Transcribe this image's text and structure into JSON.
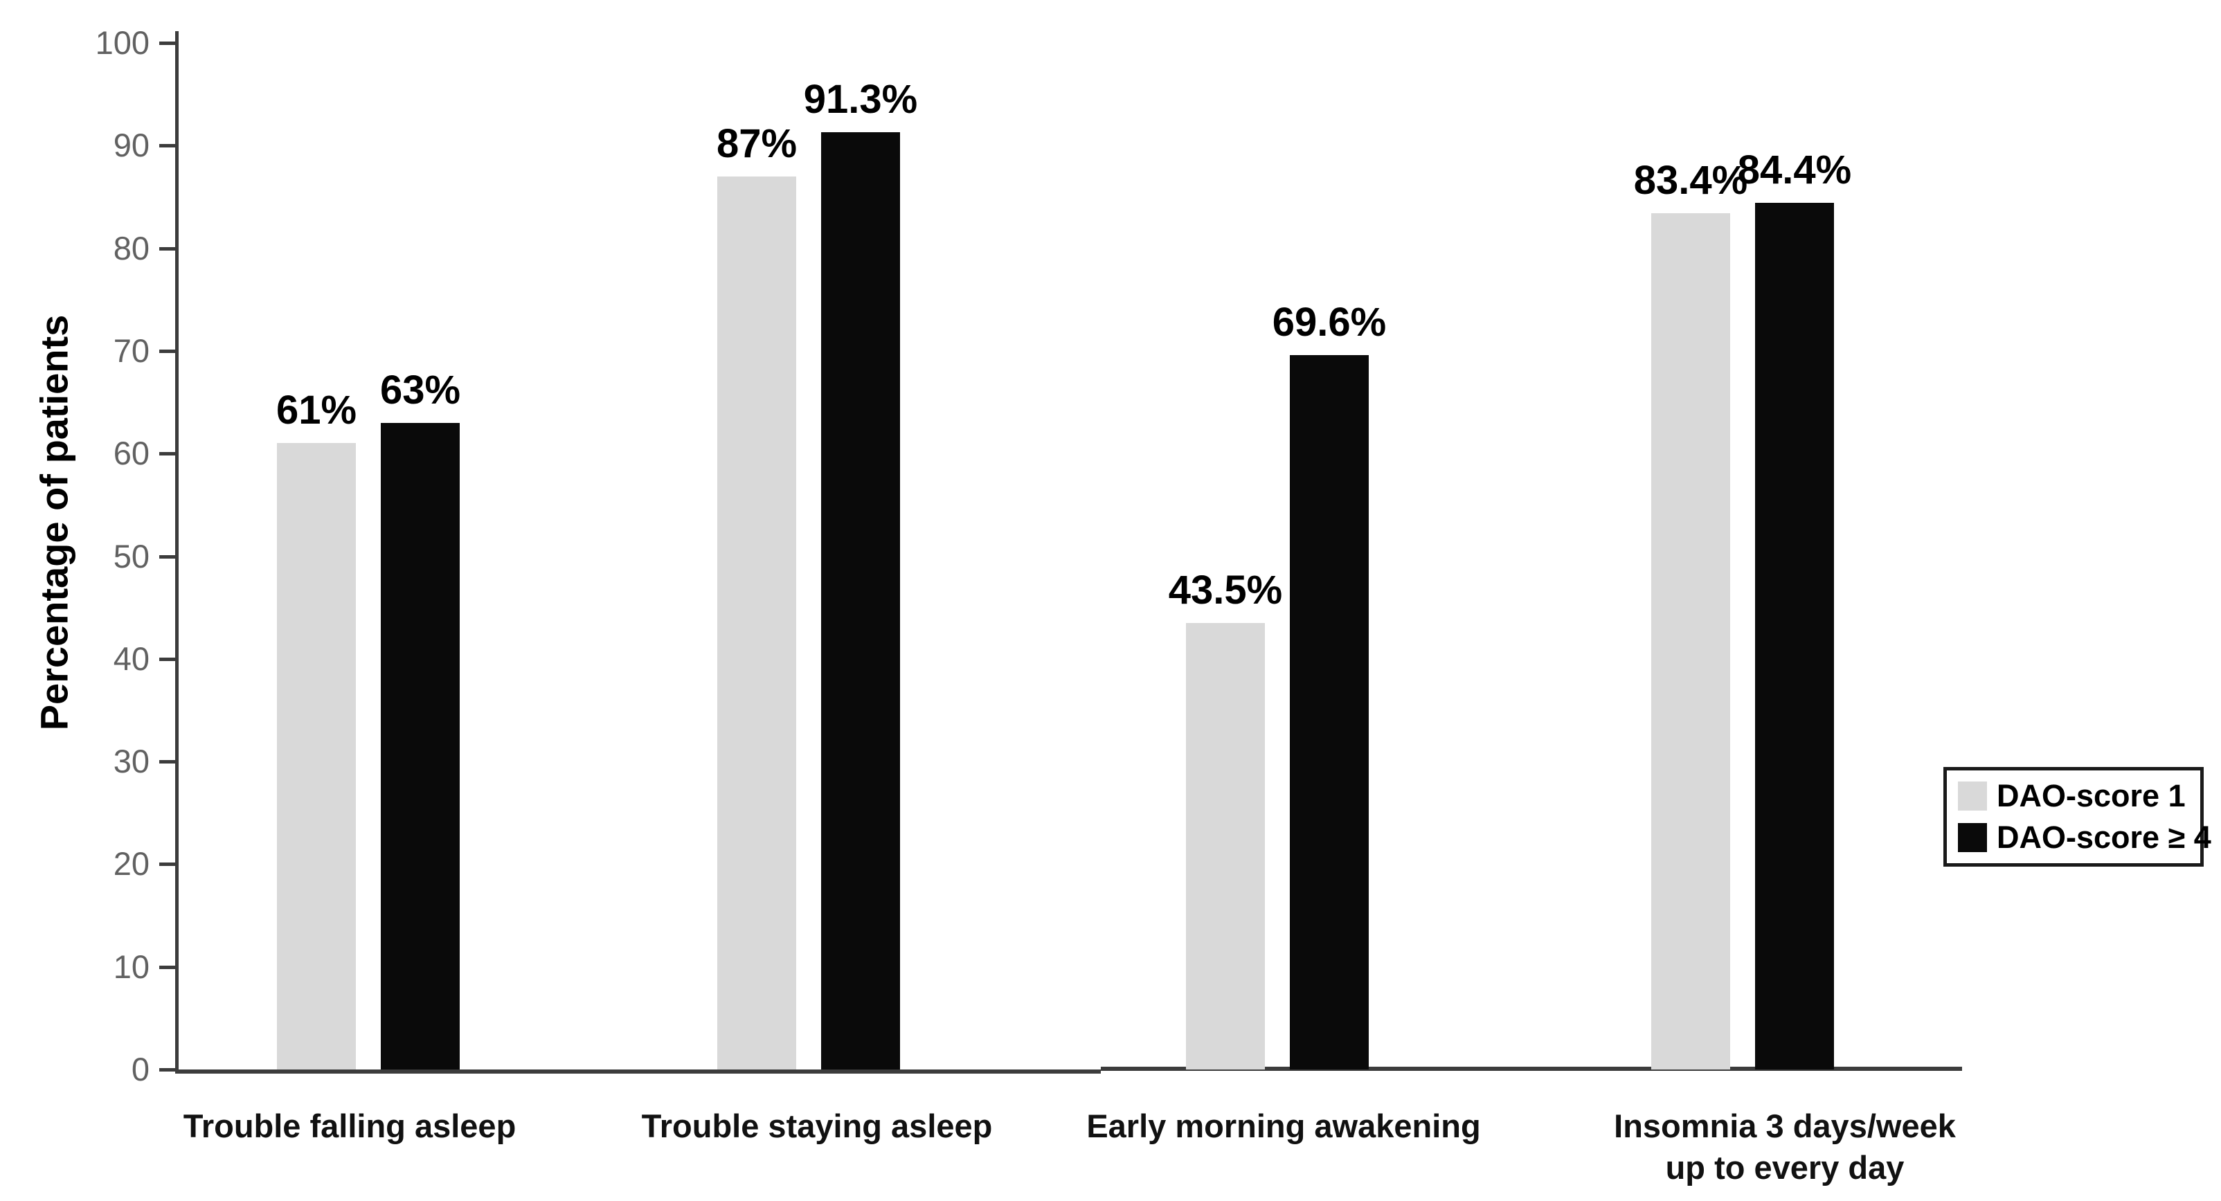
{
  "figure": {
    "background": "#ffffff"
  },
  "chart_data": {
    "type": "bar",
    "title": "",
    "xlabel": "",
    "ylabel": "Percentage of patients",
    "ylim": [
      0,
      100
    ],
    "yticks": [
      0,
      10,
      20,
      30,
      40,
      50,
      60,
      70,
      80,
      90,
      100
    ],
    "grid": false,
    "legend_position": "right",
    "categories": [
      "Trouble falling asleep",
      "Trouble staying asleep",
      "Early morning awakening",
      "Insomnia 3 days/week\nup to every day"
    ],
    "series": [
      {
        "name": "DAO-score 1",
        "color": "#d9d9d9",
        "values": [
          61,
          87,
          43.5,
          83.4
        ],
        "labels": [
          "61%",
          "87%",
          "43.5%",
          "83.4%"
        ]
      },
      {
        "name": "DAO-score ≥ 4",
        "color": "#0a0a0a",
        "values": [
          63,
          91.3,
          69.6,
          84.4
        ],
        "labels": [
          "63%",
          "91.3%",
          "69.6%",
          "84.4%"
        ]
      }
    ]
  },
  "colors": {
    "axis": "#3c3c3c",
    "tick_label": "#616161",
    "value_label": "#000000",
    "category_label": "#111111",
    "legend_border": "#1a1a1a",
    "gray_series": "#d9d9d9",
    "black_series": "#0a0a0a"
  }
}
